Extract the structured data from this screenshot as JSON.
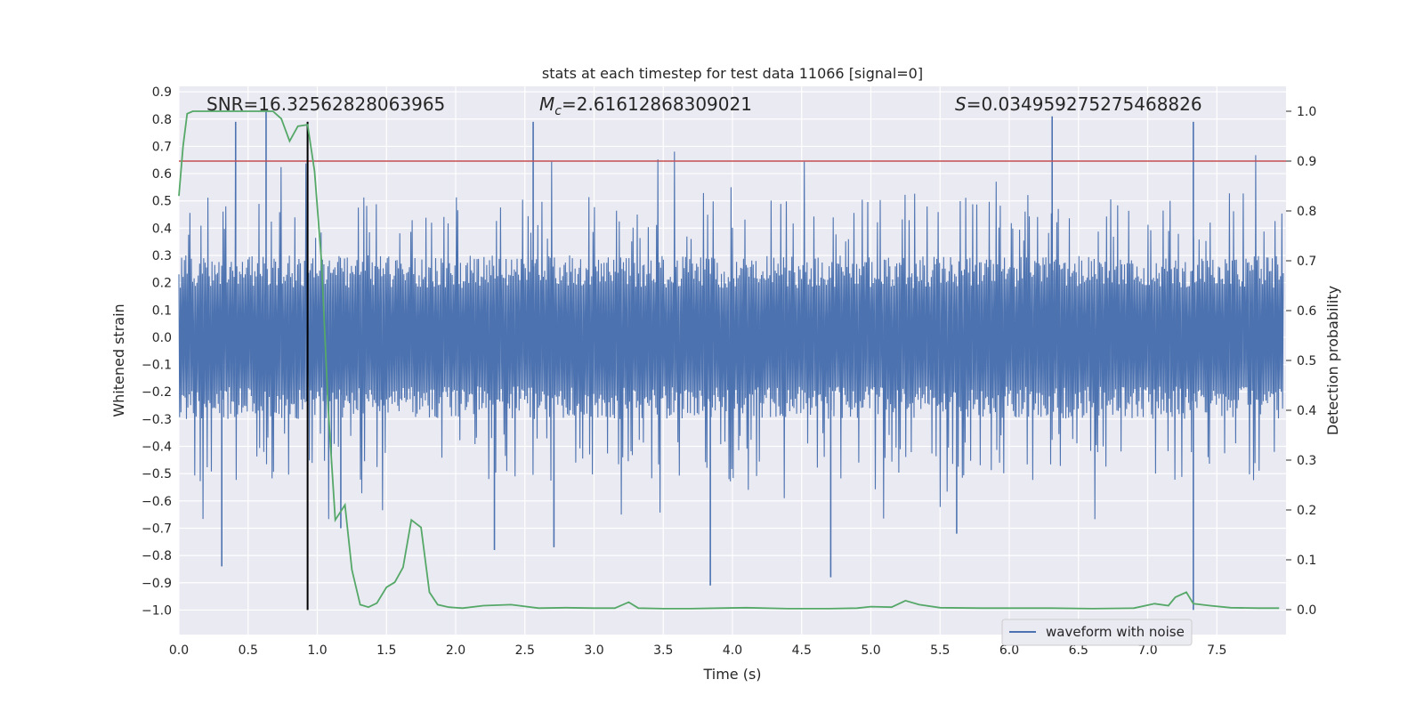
{
  "chart_data": {
    "type": "line",
    "title": "stats at each timestep for test data 11066 [signal=0]",
    "xlabel": "Time (s)",
    "ylabel_left": "Whitened strain",
    "ylabel_right": "Detection probability",
    "xlim": [
      0.0,
      8.0
    ],
    "ylim_left": [
      -1.09,
      0.92
    ],
    "ylim_right": [
      -0.05,
      1.05
    ],
    "x_ticks": [
      "0.0",
      "0.5",
      "1.0",
      "1.5",
      "2.0",
      "2.5",
      "3.0",
      "3.5",
      "4.0",
      "4.5",
      "5.0",
      "5.5",
      "6.0",
      "6.5",
      "7.0",
      "7.5"
    ],
    "y_left_ticks": [
      "0.9",
      "0.8",
      "0.7",
      "0.6",
      "0.5",
      "0.4",
      "0.3",
      "0.2",
      "0.1",
      "0.0",
      "−0.1",
      "−0.2",
      "−0.3",
      "−0.4",
      "−0.5",
      "−0.6",
      "−0.7",
      "−0.8",
      "−0.9",
      "−1.0"
    ],
    "y_right_ticks": [
      "1.0",
      "0.9",
      "0.8",
      "0.7",
      "0.6",
      "0.5",
      "0.4",
      "0.3",
      "0.2",
      "0.1",
      "0.0"
    ],
    "grid": true,
    "legend": {
      "placement": "lower-right",
      "entries": [
        "waveform with noise"
      ]
    },
    "annotations": {
      "snr": "SNR=16.32562828063965",
      "mc_symbol": "M",
      "mc_sub": "c",
      "mc_value": "=2.61612868309021",
      "s_symbol": "S",
      "s_value": "=0.034959275275468826"
    },
    "threshold_line": {
      "axis": "right",
      "y": 0.9,
      "color": "#c44e52"
    },
    "marker_line": {
      "x": 0.93,
      "y_range": [
        -1.0,
        0.79
      ],
      "color": "#000000"
    },
    "series": [
      {
        "name": "waveform with noise",
        "axis": "left",
        "color": "#4c72b0",
        "description_envelope": "dense noise, typical amplitude within about ±0.4 with spikes to ±0.8",
        "spikes": [
          {
            "x": 0.31,
            "y": -0.84
          },
          {
            "x": 0.41,
            "y": 0.79
          },
          {
            "x": 0.63,
            "y": 0.83
          },
          {
            "x": 0.93,
            "y": 0.79
          },
          {
            "x": 2.56,
            "y": 0.79
          },
          {
            "x": 2.71,
            "y": -0.77
          },
          {
            "x": 2.28,
            "y": -0.78
          },
          {
            "x": 3.84,
            "y": -0.91
          },
          {
            "x": 4.71,
            "y": -0.88
          },
          {
            "x": 6.31,
            "y": 0.81
          },
          {
            "x": 7.33,
            "y": 0.79
          },
          {
            "x": 7.33,
            "y": -1.0
          },
          {
            "x": 5.62,
            "y": -0.72
          },
          {
            "x": 1.17,
            "y": -0.7
          }
        ]
      },
      {
        "name": "",
        "axis": "right",
        "color": "#55a868",
        "points": [
          [
            0.0,
            0.83
          ],
          [
            0.03,
            0.93
          ],
          [
            0.06,
            0.995
          ],
          [
            0.1,
            1.0
          ],
          [
            0.2,
            1.0
          ],
          [
            0.3,
            1.0
          ],
          [
            0.4,
            1.0
          ],
          [
            0.5,
            1.0
          ],
          [
            0.6,
            1.0
          ],
          [
            0.68,
            1.0
          ],
          [
            0.74,
            0.985
          ],
          [
            0.8,
            0.94
          ],
          [
            0.86,
            0.97
          ],
          [
            0.93,
            0.973
          ],
          [
            0.98,
            0.88
          ],
          [
            1.03,
            0.7
          ],
          [
            1.08,
            0.4
          ],
          [
            1.13,
            0.18
          ],
          [
            1.2,
            0.21
          ],
          [
            1.25,
            0.08
          ],
          [
            1.31,
            0.01
          ],
          [
            1.37,
            0.005
          ],
          [
            1.43,
            0.013
          ],
          [
            1.5,
            0.045
          ],
          [
            1.56,
            0.055
          ],
          [
            1.62,
            0.085
          ],
          [
            1.68,
            0.18
          ],
          [
            1.75,
            0.165
          ],
          [
            1.81,
            0.035
          ],
          [
            1.87,
            0.01
          ],
          [
            1.95,
            0.005
          ],
          [
            2.05,
            0.003
          ],
          [
            2.2,
            0.008
          ],
          [
            2.4,
            0.01
          ],
          [
            2.6,
            0.003
          ],
          [
            2.8,
            0.004
          ],
          [
            3.0,
            0.003
          ],
          [
            3.15,
            0.003
          ],
          [
            3.25,
            0.015
          ],
          [
            3.32,
            0.003
          ],
          [
            3.5,
            0.002
          ],
          [
            3.7,
            0.002
          ],
          [
            3.9,
            0.003
          ],
          [
            4.1,
            0.004
          ],
          [
            4.4,
            0.002
          ],
          [
            4.7,
            0.002
          ],
          [
            4.9,
            0.003
          ],
          [
            5.0,
            0.006
          ],
          [
            5.15,
            0.005
          ],
          [
            5.25,
            0.018
          ],
          [
            5.35,
            0.01
          ],
          [
            5.5,
            0.004
          ],
          [
            5.8,
            0.003
          ],
          [
            6.0,
            0.003
          ],
          [
            6.3,
            0.003
          ],
          [
            6.6,
            0.002
          ],
          [
            6.9,
            0.003
          ],
          [
            7.05,
            0.012
          ],
          [
            7.15,
            0.008
          ],
          [
            7.2,
            0.025
          ],
          [
            7.28,
            0.035
          ],
          [
            7.33,
            0.012
          ],
          [
            7.45,
            0.008
          ],
          [
            7.6,
            0.004
          ],
          [
            7.8,
            0.003
          ],
          [
            7.95,
            0.003
          ]
        ]
      }
    ]
  }
}
